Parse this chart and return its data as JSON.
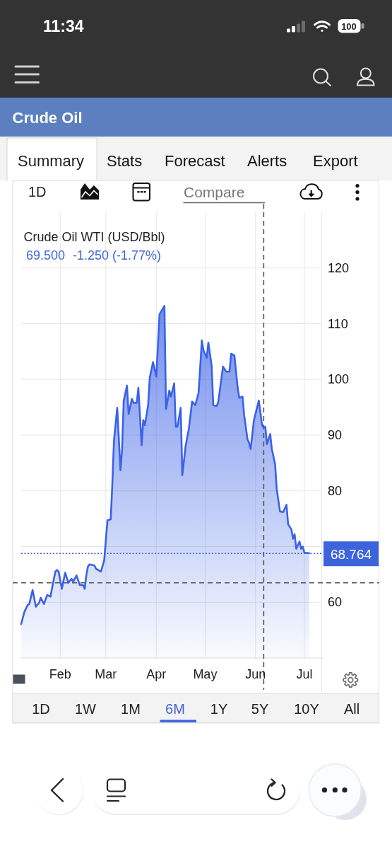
{
  "chart_data": {
    "type": "area",
    "title": "Crude Oil",
    "subtitle": "Crude Oil WTI (USD/Bbl)",
    "annotations": [
      "11:34",
      "100",
      "Summary",
      "Stats",
      "Forecast",
      "Alerts",
      "Export",
      "1D",
      "Compare",
      "69.500",
      "-1.250 (-1.77%)",
      "1D",
      "1W",
      "1M",
      "6M",
      "1Y",
      "5Y",
      "10Y",
      "All"
    ],
    "x": [
      "--01-08",
      "--01-10",
      "--01-12",
      "--01-13",
      "--01-15",
      "--01-17",
      "--01-19",
      "--01-20",
      "--01-22",
      "--01-24",
      "--01-26",
      "--01-27",
      "--01-29",
      "--01-30",
      "--01-31",
      "--02-02",
      "--02-04",
      "--02-06",
      "--02-08",
      "--02-09",
      "--02-11",
      "--02-13",
      "--02-15",
      "--02-16",
      "--02-17",
      "--02-18",
      "--02-19",
      "--02-22",
      "--02-23",
      "--02-26",
      "--02-28",
      "--03-02",
      "--03-04",
      "--03-05",
      "--03-06",
      "--03-08",
      "--03-10",
      "--03-11",
      "--03-12",
      "--03-14",
      "--03-15",
      "--03-17",
      "--03-18",
      "--03-20",
      "--03-21",
      "--03-23",
      "--03-24",
      "--03-25",
      "--03-27",
      "--03-28",
      "--03-30",
      "--04-01",
      "--04-03",
      "--04-06",
      "--04-07",
      "--04-09",
      "--04-10",
      "--04-12",
      "--04-13",
      "--04-14",
      "--04-16",
      "--04-17",
      "--04-19",
      "--04-21",
      "--04-23",
      "--04-25",
      "--04-27",
      "--04-29",
      "--04-30",
      "--05-02",
      "--05-03",
      "--05-05",
      "--05-06",
      "--05-08",
      "--05-09",
      "--05-12",
      "--05-14",
      "--05-16",
      "--05-17",
      "--05-19",
      "--05-21",
      "--05-22",
      "--05-24",
      "--05-25",
      "--05-27",
      "--05-28",
      "--05-29",
      "--05-31",
      "--06-03",
      "--06-05",
      "--06-06",
      "--06-07",
      "--06-08",
      "--06-10",
      "--06-11",
      "--06-13",
      "--06-14",
      "--06-16",
      "--06-18",
      "--06-20",
      "--06-21",
      "--06-23",
      "--06-24",
      "--06-25",
      "--06-26",
      "--06-28",
      "--06-29",
      "--06-30",
      "--07-01",
      "--07-04"
    ],
    "series": [
      {
        "color": "#3b62e6",
        "values": [
          56.1,
          58.3,
          59.5,
          59.7,
          62.2,
          59.2,
          59.9,
          60.8,
          59.7,
          61.3,
          61.0,
          62.6,
          65.5,
          65.8,
          65.5,
          62.4,
          65.3,
          63.5,
          64.2,
          63.7,
          64.8,
          63.1,
          63.1,
          62.4,
          64.8,
          66.4,
          66.8,
          66.6,
          66.0,
          65.5,
          67.5,
          74.7,
          74.9,
          81.2,
          89.0,
          94.9,
          83.7,
          87.5,
          96.2,
          98.9,
          93.8,
          96.5,
          95.8,
          95.8,
          98.5,
          88.2,
          92.7,
          91.8,
          95.4,
          100.3,
          103.1,
          100.5,
          111.7,
          113.2,
          94.7,
          98.0,
          96.9,
          99.3,
          91.5,
          91.5,
          94.9,
          82.8,
          88.0,
          91.1,
          96.0,
          95.4,
          97.6,
          107.0,
          105.2,
          103.9,
          106.6,
          102.5,
          95.4,
          95.2,
          95.8,
          102.3,
          101.4,
          101.4,
          104.6,
          104.3,
          98.5,
          96.7,
          96.9,
          93.6,
          89.3,
          88.6,
          87.5,
          92.7,
          96.2,
          91.8,
          91.3,
          91.5,
          88.4,
          90.2,
          87.5,
          84.8,
          80.3,
          76.3,
          76.2,
          77.5,
          74.0,
          73.1,
          71.4,
          72.2,
          69.6,
          70.9,
          69.6,
          70.0,
          68.9,
          68.8
        ]
      }
    ],
    "xlim": [
      "--01-08",
      "--07-11"
    ],
    "xticks": [
      {
        "value": "--02-01",
        "label": "Feb"
      },
      {
        "value": "--03-01",
        "label": "Mar"
      },
      {
        "value": "--04-01",
        "label": "Apr"
      },
      {
        "value": "--05-01",
        "label": "May"
      },
      {
        "value": "--06-01",
        "label": "Jun"
      },
      {
        "value": "--07-01",
        "label": "Jul"
      }
    ],
    "ylim": [
      50,
      130
    ],
    "yticks": [
      60,
      {
        "value": 70,
        "label": null
      },
      80,
      90,
      100,
      110,
      120
    ],
    "grid": true,
    "ref_lines": [
      {
        "axis": "y",
        "value": 68.764,
        "label": "68.764",
        "color": "#3d63dd",
        "line_style": "dotted"
      },
      {
        "axis": "y",
        "value": 63.5,
        "color": "#555555",
        "line_style": "dashed"
      },
      {
        "axis": "x",
        "value": "--06-06",
        "color": "#555555",
        "line_style": "dashed"
      }
    ]
  }
}
